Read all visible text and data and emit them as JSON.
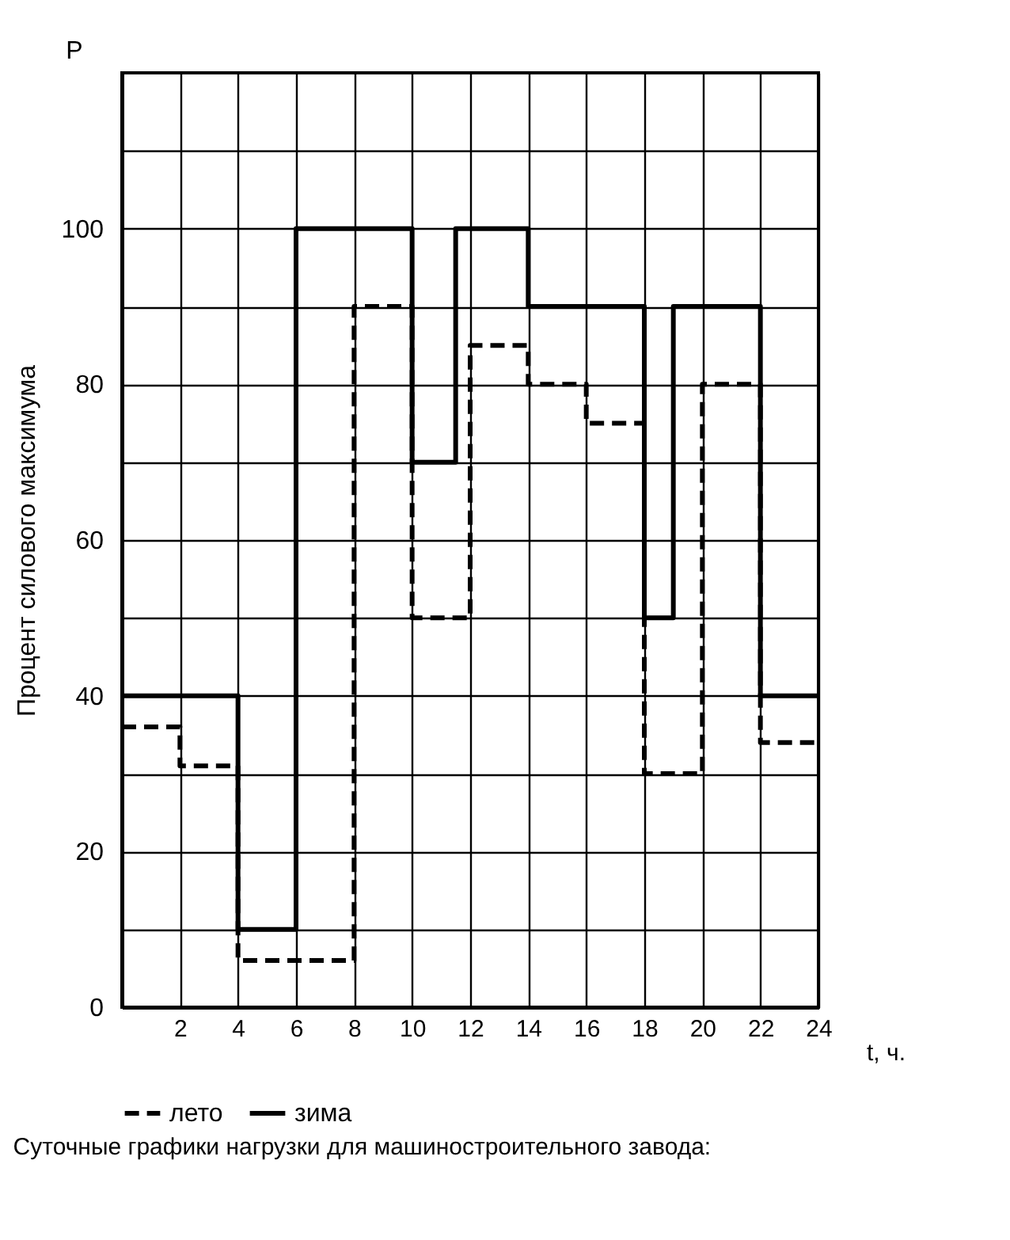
{
  "chart_data": {
    "type": "step",
    "ylabel": "Процент силового максимума",
    "xlabel": "t, ч.",
    "annotations": [
      "P",
      "Суточные графики нагрузки для машиностроительного завода:"
    ],
    "xlim": [
      0,
      24
    ],
    "xticks": [
      2,
      4,
      6,
      8,
      10,
      12,
      14,
      16,
      18,
      20,
      22,
      24
    ],
    "ylim": [
      0,
      120
    ],
    "yticks": [
      0,
      {
        "value": 10,
        "label": null
      },
      20,
      {
        "value": 30,
        "label": null
      },
      40,
      {
        "value": 50,
        "label": null
      },
      60,
      {
        "value": 70,
        "label": null
      },
      80,
      {
        "value": 90,
        "label": null
      },
      100,
      {
        "value": 110,
        "label": null
      }
    ],
    "grid": true,
    "legend": "bottom",
    "series": [
      {
        "name": "лето",
        "color": "#000000",
        "line_style": "dashed",
        "x": [
          0,
          2,
          4,
          8,
          10,
          12,
          14,
          16,
          18,
          20,
          22,
          24
        ],
        "values": [
          36,
          31,
          6,
          90,
          50,
          85,
          80,
          75,
          30,
          80,
          34,
          34
        ]
      },
      {
        "name": "зима",
        "color": "#000000",
        "line_style": "solid",
        "x": [
          0,
          4,
          6,
          10,
          11.5,
          14,
          18,
          19,
          22,
          24
        ],
        "values": [
          40,
          10,
          100,
          70,
          100,
          90,
          50,
          90,
          40,
          40
        ]
      }
    ]
  }
}
